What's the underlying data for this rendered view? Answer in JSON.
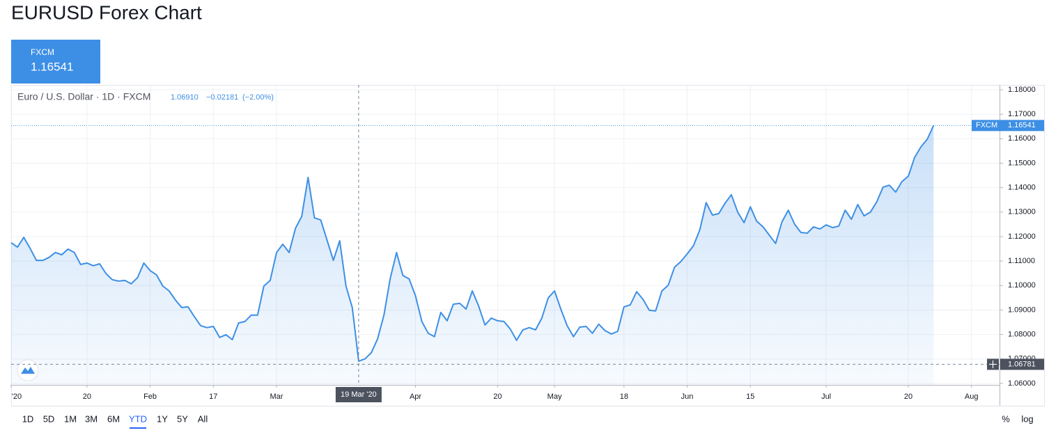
{
  "title": "EURUSD Forex Chart",
  "tab": {
    "name": "FXCM",
    "price": "1.16541"
  },
  "chart_data": {
    "type": "area",
    "legend": {
      "symbol": "Euro / U.S. Dollar · 1D · FXCM",
      "close": "1.06910",
      "change": "−0.02181",
      "change_pct": "(−2.00%)"
    },
    "x": [
      "2020-01-02",
      "2020-01-03",
      "2020-01-06",
      "2020-01-07",
      "2020-01-08",
      "2020-01-09",
      "2020-01-10",
      "2020-01-13",
      "2020-01-14",
      "2020-01-15",
      "2020-01-16",
      "2020-01-17",
      "2020-01-20",
      "2020-01-21",
      "2020-01-22",
      "2020-01-23",
      "2020-01-24",
      "2020-01-27",
      "2020-01-28",
      "2020-01-29",
      "2020-01-30",
      "2020-01-31",
      "2020-02-03",
      "2020-02-04",
      "2020-02-05",
      "2020-02-06",
      "2020-02-07",
      "2020-02-10",
      "2020-02-11",
      "2020-02-12",
      "2020-02-13",
      "2020-02-14",
      "2020-02-17",
      "2020-02-18",
      "2020-02-19",
      "2020-02-20",
      "2020-02-21",
      "2020-02-24",
      "2020-02-25",
      "2020-02-26",
      "2020-02-27",
      "2020-02-28",
      "2020-03-02",
      "2020-03-03",
      "2020-03-04",
      "2020-03-05",
      "2020-03-06",
      "2020-03-09",
      "2020-03-10",
      "2020-03-11",
      "2020-03-12",
      "2020-03-13",
      "2020-03-16",
      "2020-03-17",
      "2020-03-18",
      "2020-03-19",
      "2020-03-20",
      "2020-03-23",
      "2020-03-24",
      "2020-03-25",
      "2020-03-26",
      "2020-03-27",
      "2020-03-30",
      "2020-03-31",
      "2020-04-01",
      "2020-04-02",
      "2020-04-03",
      "2020-04-06",
      "2020-04-07",
      "2020-04-08",
      "2020-04-09",
      "2020-04-10",
      "2020-04-13",
      "2020-04-14",
      "2020-04-15",
      "2020-04-16",
      "2020-04-17",
      "2020-04-20",
      "2020-04-21",
      "2020-04-22",
      "2020-04-23",
      "2020-04-24",
      "2020-04-27",
      "2020-04-28",
      "2020-04-29",
      "2020-04-30",
      "2020-05-01",
      "2020-05-04",
      "2020-05-05",
      "2020-05-06",
      "2020-05-07",
      "2020-05-08",
      "2020-05-11",
      "2020-05-12",
      "2020-05-13",
      "2020-05-14",
      "2020-05-15",
      "2020-05-18",
      "2020-05-19",
      "2020-05-20",
      "2020-05-21",
      "2020-05-22",
      "2020-05-25",
      "2020-05-26",
      "2020-05-27",
      "2020-05-28",
      "2020-05-29",
      "2020-06-01",
      "2020-06-02",
      "2020-06-03",
      "2020-06-04",
      "2020-06-05",
      "2020-06-08",
      "2020-06-09",
      "2020-06-10",
      "2020-06-11",
      "2020-06-12",
      "2020-06-15",
      "2020-06-16",
      "2020-06-17",
      "2020-06-18",
      "2020-06-19",
      "2020-06-22",
      "2020-06-23",
      "2020-06-24",
      "2020-06-25",
      "2020-06-26",
      "2020-06-29",
      "2020-06-30",
      "2020-07-01",
      "2020-07-02",
      "2020-07-03",
      "2020-07-06",
      "2020-07-07",
      "2020-07-08",
      "2020-07-09",
      "2020-07-10",
      "2020-07-13",
      "2020-07-14",
      "2020-07-15",
      "2020-07-16",
      "2020-07-17",
      "2020-07-20",
      "2020-07-21",
      "2020-07-22",
      "2020-07-23",
      "2020-07-24"
    ],
    "series": [
      {
        "name": "FXCM",
        "color": "#3d8fe5",
        "values": [
          1.1175,
          1.1157,
          1.1197,
          1.1152,
          1.1103,
          1.1103,
          1.1115,
          1.1135,
          1.1126,
          1.1149,
          1.1135,
          1.1086,
          1.1092,
          1.1081,
          1.1089,
          1.1049,
          1.1024,
          1.1018,
          1.1021,
          1.1007,
          1.1032,
          1.1092,
          1.1061,
          1.1044,
          1.0998,
          1.0978,
          1.0941,
          1.091,
          1.0913,
          1.0873,
          1.0836,
          1.0828,
          1.0833,
          1.0788,
          1.0799,
          1.0779,
          1.0847,
          1.0853,
          1.0879,
          1.0879,
          1.0998,
          1.1021,
          1.1135,
          1.1169,
          1.1135,
          1.1234,
          1.1283,
          1.1442,
          1.1277,
          1.1268,
          1.1186,
          1.1103,
          1.1183,
          1.0998,
          1.09091,
          1.0691,
          1.07,
          1.0725,
          1.0782,
          1.0879,
          1.1029,
          1.1135,
          1.1041,
          1.1027,
          1.0958,
          1.0853,
          1.0805,
          1.0791,
          1.089,
          1.0856,
          1.0924,
          1.0927,
          1.0904,
          1.0978,
          1.0916,
          1.0839,
          1.0867,
          1.0856,
          1.0853,
          1.0822,
          1.0776,
          1.0819,
          1.0828,
          1.0819,
          1.0867,
          1.0949,
          1.0978,
          1.0904,
          1.0836,
          1.0791,
          1.083,
          1.0833,
          1.0805,
          1.0842,
          1.0816,
          1.0802,
          1.0813,
          1.0913,
          1.0921,
          1.0975,
          1.0944,
          1.0899,
          1.0896,
          1.0978,
          1.1001,
          1.1075,
          1.1098,
          1.1129,
          1.1163,
          1.1228,
          1.1339,
          1.1288,
          1.1294,
          1.1337,
          1.1371,
          1.13,
          1.1257,
          1.1322,
          1.1263,
          1.124,
          1.1206,
          1.1172,
          1.126,
          1.1308,
          1.1251,
          1.1217,
          1.1214,
          1.124,
          1.1231,
          1.1248,
          1.1237,
          1.1243,
          1.1308,
          1.1271,
          1.1331,
          1.1285,
          1.13,
          1.1342,
          1.1402,
          1.141,
          1.1382,
          1.1425,
          1.1447,
          1.1524,
          1.1567,
          1.1598,
          1.16541
        ]
      }
    ],
    "xlim": [
      "2020-01-02",
      "2020-08-07"
    ],
    "xticks": [
      {
        "value": "2020-01-02",
        "label": "'20"
      },
      {
        "value": "2020-01-20",
        "label": "20"
      },
      {
        "value": "2020-02-03",
        "label": "Feb"
      },
      {
        "value": "2020-02-17",
        "label": "17"
      },
      {
        "value": "2020-03-02",
        "label": "Mar"
      },
      {
        "value": "2020-04-01",
        "label": "Apr"
      },
      {
        "value": "2020-04-20",
        "label": "20"
      },
      {
        "value": "2020-05-01",
        "label": "May"
      },
      {
        "value": "2020-05-18",
        "label": "18"
      },
      {
        "value": "2020-06-01",
        "label": "Jun"
      },
      {
        "value": "2020-06-15",
        "label": "15"
      },
      {
        "value": "2020-07-01",
        "label": "Jul"
      },
      {
        "value": "2020-07-20",
        "label": "20"
      },
      {
        "value": "2020-08-03",
        "label": "Aug"
      }
    ],
    "ylim": [
      1.0594,
      1.182
    ],
    "yticks": [
      {
        "value": 1.06,
        "label": "1.06000"
      },
      {
        "value": 1.07,
        "label": "1.07000"
      },
      {
        "value": 1.08,
        "label": "1.08000"
      },
      {
        "value": 1.09,
        "label": "1.09000"
      },
      {
        "value": 1.1,
        "label": "1.10000"
      },
      {
        "value": 1.11,
        "label": "1.11000"
      },
      {
        "value": 1.12,
        "label": "1.12000"
      },
      {
        "value": 1.13,
        "label": "1.13000"
      },
      {
        "value": 1.14,
        "label": "1.14000"
      },
      {
        "value": 1.15,
        "label": "1.15000"
      },
      {
        "value": 1.16,
        "label": "1.16000"
      },
      {
        "value": 1.17,
        "label": "1.17000"
      },
      {
        "value": 1.18,
        "label": "1.18000"
      }
    ],
    "grid": true,
    "last_price": 1.16541,
    "crosshair": {
      "x": "2020-03-19",
      "x_label": "19 Mar '20",
      "y": 1.06781
    }
  },
  "toolbar": {
    "ranges": [
      "1D",
      "5D",
      "1M",
      "3M",
      "6M",
      "YTD",
      "1Y",
      "5Y",
      "All"
    ],
    "active": 5,
    "options": [
      "%",
      "log"
    ]
  }
}
